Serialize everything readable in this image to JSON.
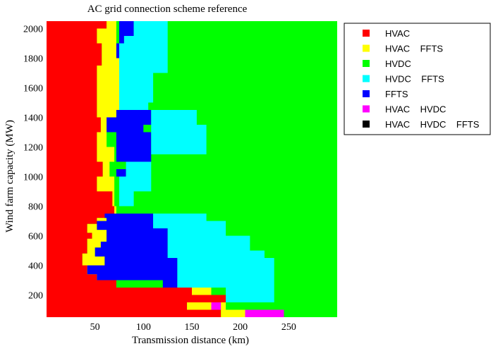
{
  "chart_data": {
    "type": "heatmap",
    "title": "AC grid connection scheme reference",
    "xlabel": "Transmission distance (km)",
    "ylabel": "Wind farm capacity (MW)",
    "xlim": [
      0,
      300
    ],
    "ylim": [
      50,
      2050
    ],
    "x_ticks": [
      50,
      100,
      150,
      200,
      250
    ],
    "y_ticks": [
      200,
      400,
      600,
      800,
      1000,
      1200,
      1400,
      1600,
      1800,
      2000
    ],
    "legend": {
      "position": "right",
      "entries": [
        {
          "label": "HVAC",
          "color": "#ff0000"
        },
        {
          "label": "HVAC    FFTS",
          "color": "#ffff00"
        },
        {
          "label": "HVDC",
          "color": "#00ff00"
        },
        {
          "label": "HVDC    FFTS",
          "color": "#00ffff"
        },
        {
          "label": "FFTS",
          "color": "#0000ff"
        },
        {
          "label": "HVAC    HVDC",
          "color": "#ff00ff"
        },
        {
          "label": "HVAC    HVDC    FFTS",
          "color": "#000000"
        }
      ]
    },
    "background_scheme": "HVDC",
    "regions": [
      {
        "scheme": "HVAC",
        "polygon": [
          [
            0,
            2050
          ],
          [
            62,
            2050
          ],
          [
            62,
            2000
          ],
          [
            52,
            2000
          ],
          [
            52,
            1900
          ],
          [
            57,
            1900
          ],
          [
            57,
            1750
          ],
          [
            52,
            1750
          ],
          [
            52,
            1400
          ],
          [
            56,
            1400
          ],
          [
            56,
            1300
          ],
          [
            52,
            1300
          ],
          [
            52,
            1100
          ],
          [
            58,
            1100
          ],
          [
            58,
            1000
          ],
          [
            52,
            1000
          ],
          [
            52,
            900
          ],
          [
            68,
            900
          ],
          [
            68,
            800
          ],
          [
            70,
            800
          ],
          [
            70,
            720
          ],
          [
            52,
            720
          ],
          [
            52,
            680
          ],
          [
            42,
            680
          ],
          [
            42,
            620
          ],
          [
            47,
            620
          ],
          [
            47,
            580
          ],
          [
            42,
            580
          ],
          [
            42,
            480
          ],
          [
            37,
            480
          ],
          [
            37,
            400
          ],
          [
            42,
            400
          ],
          [
            42,
            340
          ],
          [
            52,
            340
          ],
          [
            52,
            300
          ],
          [
            72,
            300
          ],
          [
            72,
            250
          ],
          [
            150,
            250
          ],
          [
            150,
            200
          ],
          [
            185,
            200
          ],
          [
            185,
            150
          ],
          [
            145,
            150
          ],
          [
            145,
            100
          ],
          [
            180,
            100
          ],
          [
            180,
            50
          ],
          [
            0,
            50
          ]
        ]
      },
      {
        "scheme": "HVAC    FFTS",
        "polygon": [
          [
            62,
            2050
          ],
          [
            72,
            2050
          ],
          [
            72,
            1900
          ],
          [
            75,
            1900
          ],
          [
            75,
            1400
          ],
          [
            72,
            1400
          ],
          [
            72,
            1300
          ],
          [
            62,
            1300
          ],
          [
            62,
            1200
          ],
          [
            70,
            1200
          ],
          [
            70,
            1100
          ],
          [
            65,
            1100
          ],
          [
            65,
            1000
          ],
          [
            70,
            1000
          ],
          [
            70,
            800
          ],
          [
            72,
            800
          ],
          [
            72,
            750
          ],
          [
            68,
            750
          ],
          [
            68,
            720
          ],
          [
            52,
            720
          ],
          [
            52,
            680
          ],
          [
            42,
            680
          ],
          [
            42,
            620
          ],
          [
            47,
            620
          ],
          [
            47,
            580
          ],
          [
            42,
            580
          ],
          [
            42,
            480
          ],
          [
            37,
            480
          ],
          [
            37,
            400
          ],
          [
            42,
            400
          ],
          [
            42,
            340
          ],
          [
            52,
            340
          ],
          [
            52,
            300
          ],
          [
            72,
            300
          ],
          [
            72,
            360
          ],
          [
            60,
            360
          ],
          [
            60,
            460
          ],
          [
            50,
            460
          ],
          [
            50,
            520
          ],
          [
            56,
            520
          ],
          [
            56,
            560
          ],
          [
            62,
            560
          ],
          [
            62,
            640
          ],
          [
            52,
            640
          ],
          [
            52,
            700
          ],
          [
            62,
            700
          ],
          [
            62,
            720
          ],
          [
            70,
            720
          ],
          [
            70,
            800
          ],
          [
            68,
            800
          ],
          [
            68,
            900
          ],
          [
            52,
            900
          ],
          [
            52,
            1000
          ],
          [
            58,
            1000
          ],
          [
            58,
            1100
          ],
          [
            52,
            1100
          ],
          [
            52,
            1300
          ],
          [
            56,
            1300
          ],
          [
            56,
            1400
          ],
          [
            52,
            1400
          ],
          [
            52,
            1750
          ],
          [
            57,
            1750
          ],
          [
            57,
            1900
          ],
          [
            52,
            1900
          ],
          [
            52,
            2000
          ],
          [
            62,
            2000
          ]
        ]
      },
      {
        "scheme": "HVAC    FFTS",
        "polygon": [
          [
            150,
            250
          ],
          [
            170,
            250
          ],
          [
            170,
            200
          ],
          [
            150,
            200
          ]
        ]
      },
      {
        "scheme": "HVAC    FFTS",
        "polygon": [
          [
            145,
            150
          ],
          [
            185,
            150
          ],
          [
            185,
            100
          ],
          [
            205,
            100
          ],
          [
            205,
            50
          ],
          [
            180,
            50
          ],
          [
            180,
            100
          ],
          [
            145,
            100
          ]
        ]
      },
      {
        "scheme": "FFTS",
        "polygon": [
          [
            72,
            2050
          ],
          [
            90,
            2050
          ],
          [
            90,
            1950
          ],
          [
            80,
            1950
          ],
          [
            80,
            1800
          ],
          [
            72,
            1800
          ],
          [
            72,
            1900
          ],
          [
            75,
            1900
          ],
          [
            75,
            2050
          ]
        ]
      },
      {
        "scheme": "HVDC    FFTS",
        "polygon": [
          [
            90,
            2050
          ],
          [
            125,
            2050
          ],
          [
            125,
            1700
          ],
          [
            110,
            1700
          ],
          [
            110,
            1500
          ],
          [
            105,
            1500
          ],
          [
            105,
            1400
          ],
          [
            75,
            1400
          ],
          [
            75,
            1900
          ],
          [
            80,
            1900
          ],
          [
            80,
            1950
          ],
          [
            90,
            1950
          ]
        ]
      },
      {
        "scheme": "FFTS",
        "polygon": [
          [
            72,
            1450
          ],
          [
            108,
            1450
          ],
          [
            108,
            1350
          ],
          [
            100,
            1350
          ],
          [
            100,
            1300
          ],
          [
            108,
            1300
          ],
          [
            108,
            1100
          ],
          [
            72,
            1100
          ],
          [
            72,
            1300
          ],
          [
            62,
            1300
          ],
          [
            62,
            1400
          ],
          [
            72,
            1400
          ]
        ]
      },
      {
        "scheme": "HVDC    FFTS",
        "polygon": [
          [
            108,
            1450
          ],
          [
            155,
            1450
          ],
          [
            155,
            1350
          ],
          [
            165,
            1350
          ],
          [
            165,
            1150
          ],
          [
            108,
            1150
          ]
        ]
      },
      {
        "scheme": "FFTS",
        "polygon": [
          [
            72,
            1050
          ],
          [
            82,
            1050
          ],
          [
            82,
            1000
          ],
          [
            72,
            1000
          ]
        ]
      },
      {
        "scheme": "HVDC    FFTS",
        "polygon": [
          [
            82,
            1100
          ],
          [
            108,
            1100
          ],
          [
            108,
            900
          ],
          [
            90,
            900
          ],
          [
            90,
            800
          ],
          [
            75,
            800
          ],
          [
            75,
            1000
          ],
          [
            82,
            1000
          ]
        ]
      },
      {
        "scheme": "FFTS",
        "polygon": [
          [
            60,
            750
          ],
          [
            110,
            750
          ],
          [
            110,
            650
          ],
          [
            125,
            650
          ],
          [
            125,
            450
          ],
          [
            135,
            450
          ],
          [
            135,
            250
          ],
          [
            120,
            250
          ],
          [
            120,
            300
          ],
          [
            52,
            300
          ],
          [
            52,
            340
          ],
          [
            42,
            340
          ],
          [
            42,
            400
          ],
          [
            60,
            400
          ],
          [
            60,
            460
          ],
          [
            50,
            460
          ],
          [
            50,
            520
          ],
          [
            56,
            520
          ],
          [
            56,
            560
          ],
          [
            62,
            560
          ],
          [
            62,
            640
          ],
          [
            52,
            640
          ],
          [
            52,
            700
          ],
          [
            62,
            700
          ],
          [
            62,
            720
          ],
          [
            60,
            720
          ]
        ]
      },
      {
        "scheme": "HVDC    FFTS",
        "polygon": [
          [
            110,
            750
          ],
          [
            165,
            750
          ],
          [
            165,
            700
          ],
          [
            185,
            700
          ],
          [
            185,
            600
          ],
          [
            210,
            600
          ],
          [
            210,
            500
          ],
          [
            225,
            500
          ],
          [
            225,
            450
          ],
          [
            235,
            450
          ],
          [
            235,
            150
          ],
          [
            185,
            150
          ],
          [
            185,
            250
          ],
          [
            135,
            250
          ],
          [
            135,
            450
          ],
          [
            125,
            450
          ],
          [
            125,
            650
          ],
          [
            110,
            650
          ]
        ]
      },
      {
        "scheme": "HVAC    HVDC",
        "polygon": [
          [
            170,
            150
          ],
          [
            180,
            150
          ],
          [
            180,
            100
          ],
          [
            170,
            100
          ]
        ]
      },
      {
        "scheme": "HVAC    HVDC",
        "polygon": [
          [
            205,
            100
          ],
          [
            245,
            100
          ],
          [
            245,
            50
          ],
          [
            205,
            50
          ]
        ]
      }
    ]
  }
}
